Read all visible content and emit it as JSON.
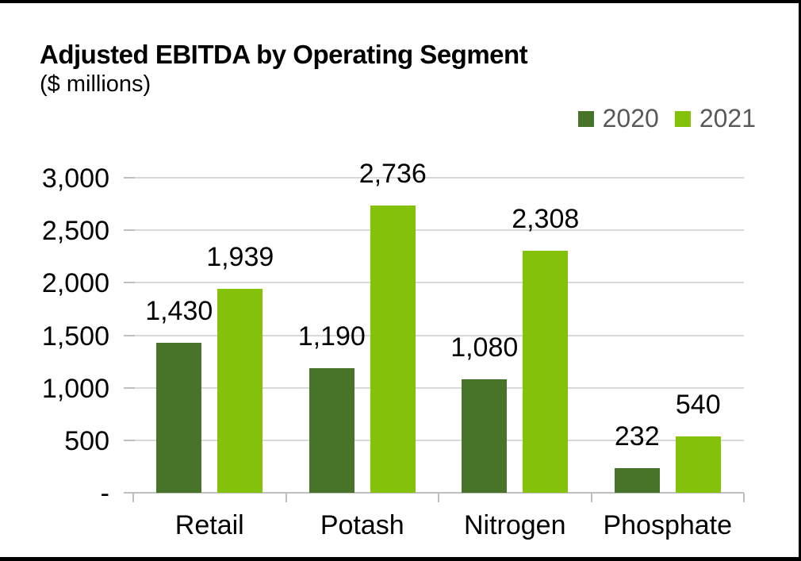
{
  "header": {
    "title": "Adjusted EBITDA by Operating Segment",
    "subtitle": "($ millions)"
  },
  "colors": {
    "series_2020": "#477428",
    "series_2021": "#84c10b",
    "legend_text": "#595959",
    "gridline": "#d9d9d9",
    "axis": "#bfbfbf",
    "label": "#000000",
    "frame_border": "#000000",
    "background": "#ffffff"
  },
  "chart_data": {
    "type": "bar",
    "title": "Adjusted EBITDA by Operating Segment",
    "subtitle": "($ millions)",
    "xlabel": "",
    "ylabel": "",
    "categories": [
      "Retail",
      "Potash",
      "Nitrogen",
      "Phosphate"
    ],
    "series": [
      {
        "name": "2020",
        "color": "#477428",
        "values": [
          1430,
          1190,
          1080,
          232
        ],
        "labels": [
          "1,430",
          "1,190",
          "1,080",
          "232"
        ]
      },
      {
        "name": "2021",
        "color": "#84c10b",
        "values": [
          1939,
          2736,
          2308,
          540
        ],
        "labels": [
          "1,939",
          "2,736",
          "2,308",
          "540"
        ]
      }
    ],
    "y_axis": {
      "min": 0,
      "max": 3000,
      "step": 500,
      "tick_values": [
        3000,
        2500,
        2000,
        1500,
        1000,
        500,
        0
      ],
      "tick_labels": [
        "3,000",
        "2,500",
        "2,000",
        "1,500",
        "1,000",
        "500",
        "-"
      ]
    },
    "ylim": [
      0,
      3000
    ],
    "grid": true,
    "legend_position": "top-right",
    "gridline_color": "#d9d9d9",
    "axis_color": "#bfbfbf",
    "label_color": "#000000"
  }
}
